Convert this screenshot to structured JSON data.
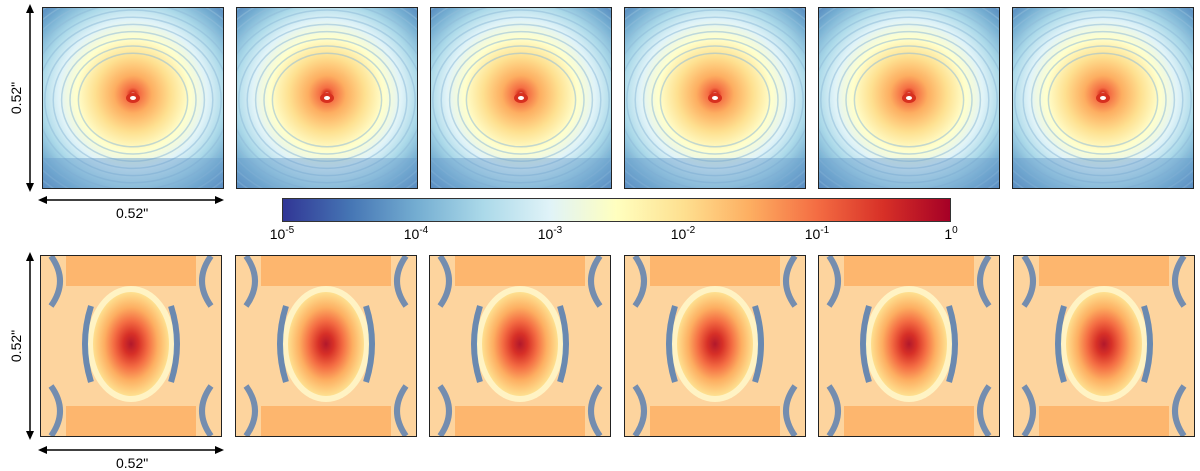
{
  "scale_labels": {
    "top_vertical": "0.52\"",
    "top_horizontal": "0.52\"",
    "bottom_vertical": "0.52\"",
    "bottom_horizontal": "0.52\""
  },
  "colorbar": {
    "colormap": "RdYlBu_r",
    "scale": "log",
    "ticks": [
      {
        "base": "10",
        "exp": "-5"
      },
      {
        "base": "10",
        "exp": "-4"
      },
      {
        "base": "10",
        "exp": "-3"
      },
      {
        "base": "10",
        "exp": "-2"
      },
      {
        "base": "10",
        "exp": "-1"
      },
      {
        "base": "1",
        "exp": "0"
      }
    ]
  },
  "panels": {
    "top_count": 6,
    "bottom_count": 6
  }
}
